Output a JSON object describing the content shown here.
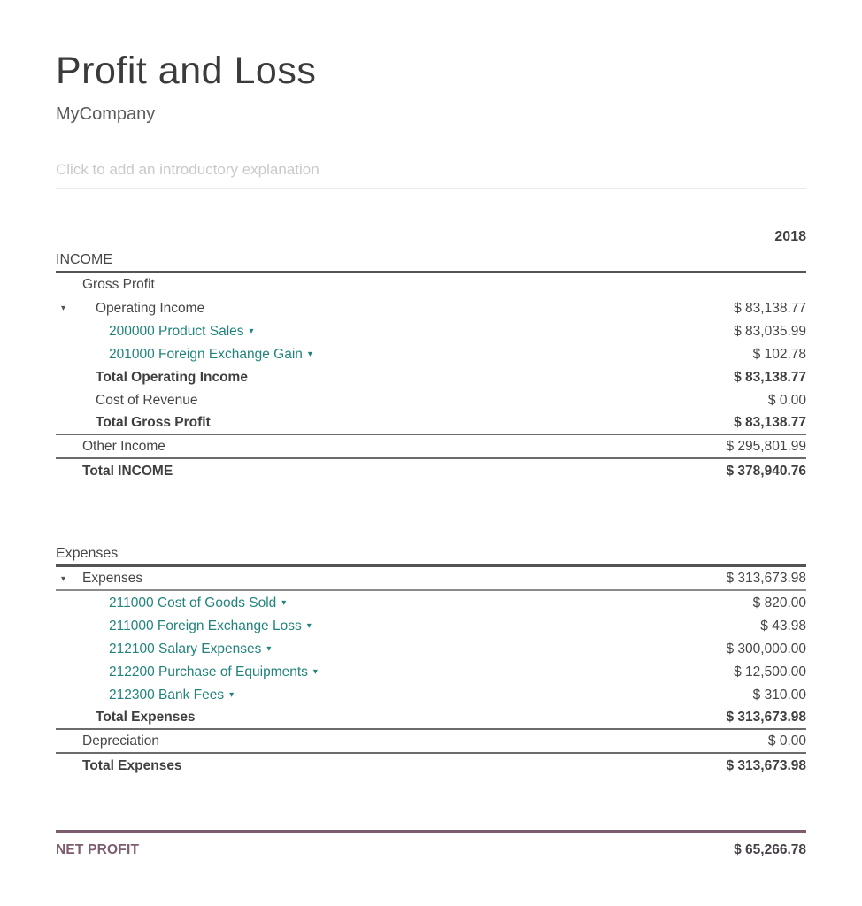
{
  "header": {
    "title": "Profit and Loss",
    "company": "MyCompany",
    "intro_placeholder": "Click to add an introductory explanation"
  },
  "report": {
    "period_label": "2018",
    "income_rows": [
      {
        "name": "income-header",
        "label": "INCOME",
        "amount": "",
        "kind": "section-header",
        "indent": 0,
        "border_bottom": "thick"
      },
      {
        "name": "gross-profit",
        "label": "Gross Profit",
        "amount": "",
        "kind": "text",
        "indent": 1,
        "border_bottom": "thin"
      },
      {
        "name": "operating-income",
        "label": "Operating Income",
        "amount": "$ 83,138.77",
        "kind": "group",
        "indent": 2,
        "caret": true
      },
      {
        "name": "account-200000-product-sales",
        "label": "200000 Product Sales",
        "amount": "$ 83,035.99",
        "kind": "account",
        "indent": 3
      },
      {
        "name": "account-201000-foreign-exchange-gain",
        "label": "201000 Foreign Exchange Gain",
        "amount": "$ 102.78",
        "kind": "account",
        "indent": 3
      },
      {
        "name": "total-operating-income",
        "label": "Total Operating Income",
        "amount": "$ 83,138.77",
        "kind": "total",
        "indent": 2,
        "bold": true
      },
      {
        "name": "cost-of-revenue",
        "label": "Cost of Revenue",
        "amount": "$ 0.00",
        "kind": "text",
        "indent": 2
      },
      {
        "name": "total-gross-profit",
        "label": "Total Gross Profit",
        "amount": "$ 83,138.77",
        "kind": "total",
        "indent": 2,
        "bold": true,
        "border_bottom": "medium"
      },
      {
        "name": "other-income",
        "label": "Other Income",
        "amount": "$ 295,801.99",
        "kind": "text",
        "indent": 1,
        "border_bottom": "medium"
      },
      {
        "name": "total-income",
        "label": "Total INCOME",
        "amount": "$ 378,940.76",
        "kind": "total",
        "indent": 1,
        "bold": true
      }
    ],
    "expenses_rows": [
      {
        "name": "expenses-header",
        "label": "Expenses",
        "amount": "",
        "kind": "section-header",
        "indent": 0,
        "border_bottom": "thick"
      },
      {
        "name": "expenses-group",
        "label": "Expenses",
        "amount": "$ 313,673.98",
        "kind": "group",
        "indent": 1,
        "caret": true,
        "border_bottom": "group"
      },
      {
        "name": "account-211000-cost-of-goods-sold",
        "label": "211000 Cost of Goods Sold",
        "amount": "$ 820.00",
        "kind": "account",
        "indent": 3
      },
      {
        "name": "account-211000-foreign-exchange-loss",
        "label": "211000 Foreign Exchange Loss",
        "amount": "$ 43.98",
        "kind": "account",
        "indent": 3
      },
      {
        "name": "account-212100-salary-expenses",
        "label": "212100 Salary Expenses",
        "amount": "$ 300,000.00",
        "kind": "account",
        "indent": 3
      },
      {
        "name": "account-212200-purchase-of-equipments",
        "label": "212200 Purchase of Equipments",
        "amount": "$ 12,500.00",
        "kind": "account",
        "indent": 3
      },
      {
        "name": "account-212300-bank-fees",
        "label": "212300 Bank Fees",
        "amount": "$ 310.00",
        "kind": "account",
        "indent": 3
      },
      {
        "name": "total-expenses-sub",
        "label": "Total Expenses",
        "amount": "$ 313,673.98",
        "kind": "total",
        "indent": 2,
        "bold": true,
        "border_bottom": "medium"
      },
      {
        "name": "depreciation",
        "label": "Depreciation",
        "amount": "$ 0.00",
        "kind": "text",
        "indent": 1,
        "border_bottom": "medium"
      },
      {
        "name": "total-expenses",
        "label": "Total Expenses",
        "amount": "$ 313,673.98",
        "kind": "total",
        "indent": 1,
        "bold": true
      }
    ],
    "net_profit": {
      "label": "NET PROFIT",
      "amount": "$ 65,266.78"
    }
  },
  "icons": {
    "caret_down": "▾"
  },
  "colors": {
    "accent_teal": "#21847c",
    "net_profit_accent": "#7d5c70",
    "text": "#454545",
    "placeholder": "#c9c9c9"
  }
}
